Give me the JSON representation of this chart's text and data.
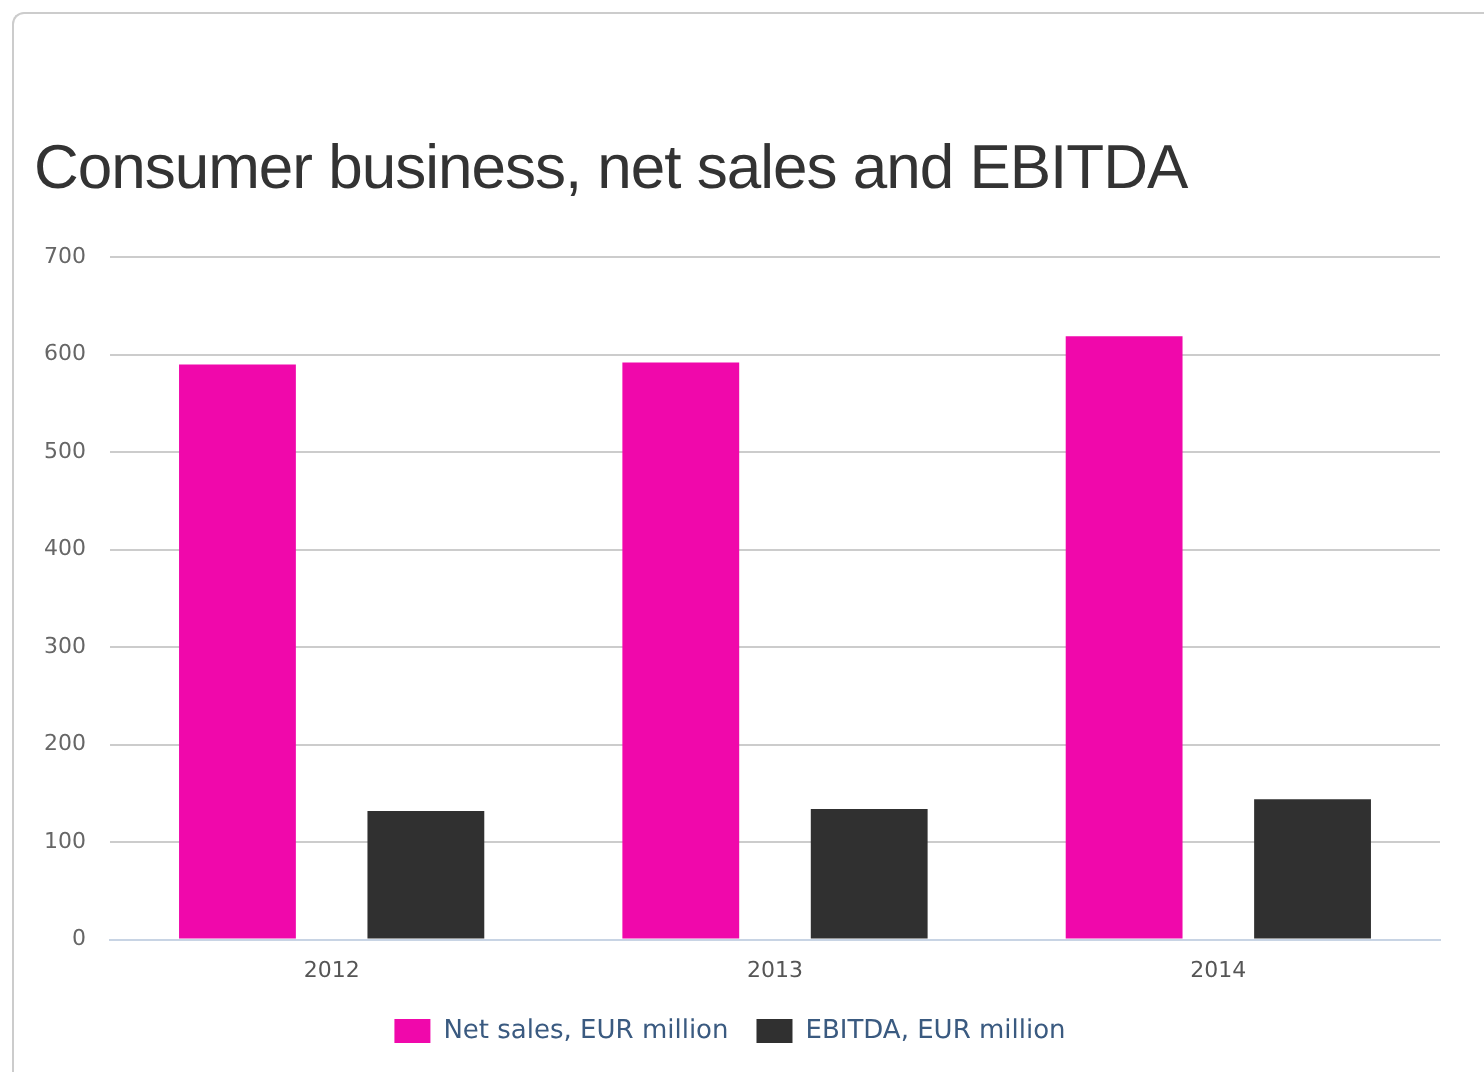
{
  "chart_data": {
    "type": "bar",
    "title": "Consumer business, net sales and EBITDA",
    "categories": [
      "2012",
      "2013",
      "2014"
    ],
    "series": [
      {
        "name": "Net sales, EUR million",
        "color": "#f008ab",
        "values": [
          590,
          592,
          619
        ]
      },
      {
        "name": "EBITDA, EUR million",
        "color": "#303030",
        "values": [
          132,
          134,
          144
        ]
      }
    ],
    "ylim": [
      0,
      700
    ],
    "yticks": [
      0,
      100,
      200,
      300,
      400,
      500,
      600,
      700
    ],
    "grid": "y",
    "legend": "bottom"
  }
}
